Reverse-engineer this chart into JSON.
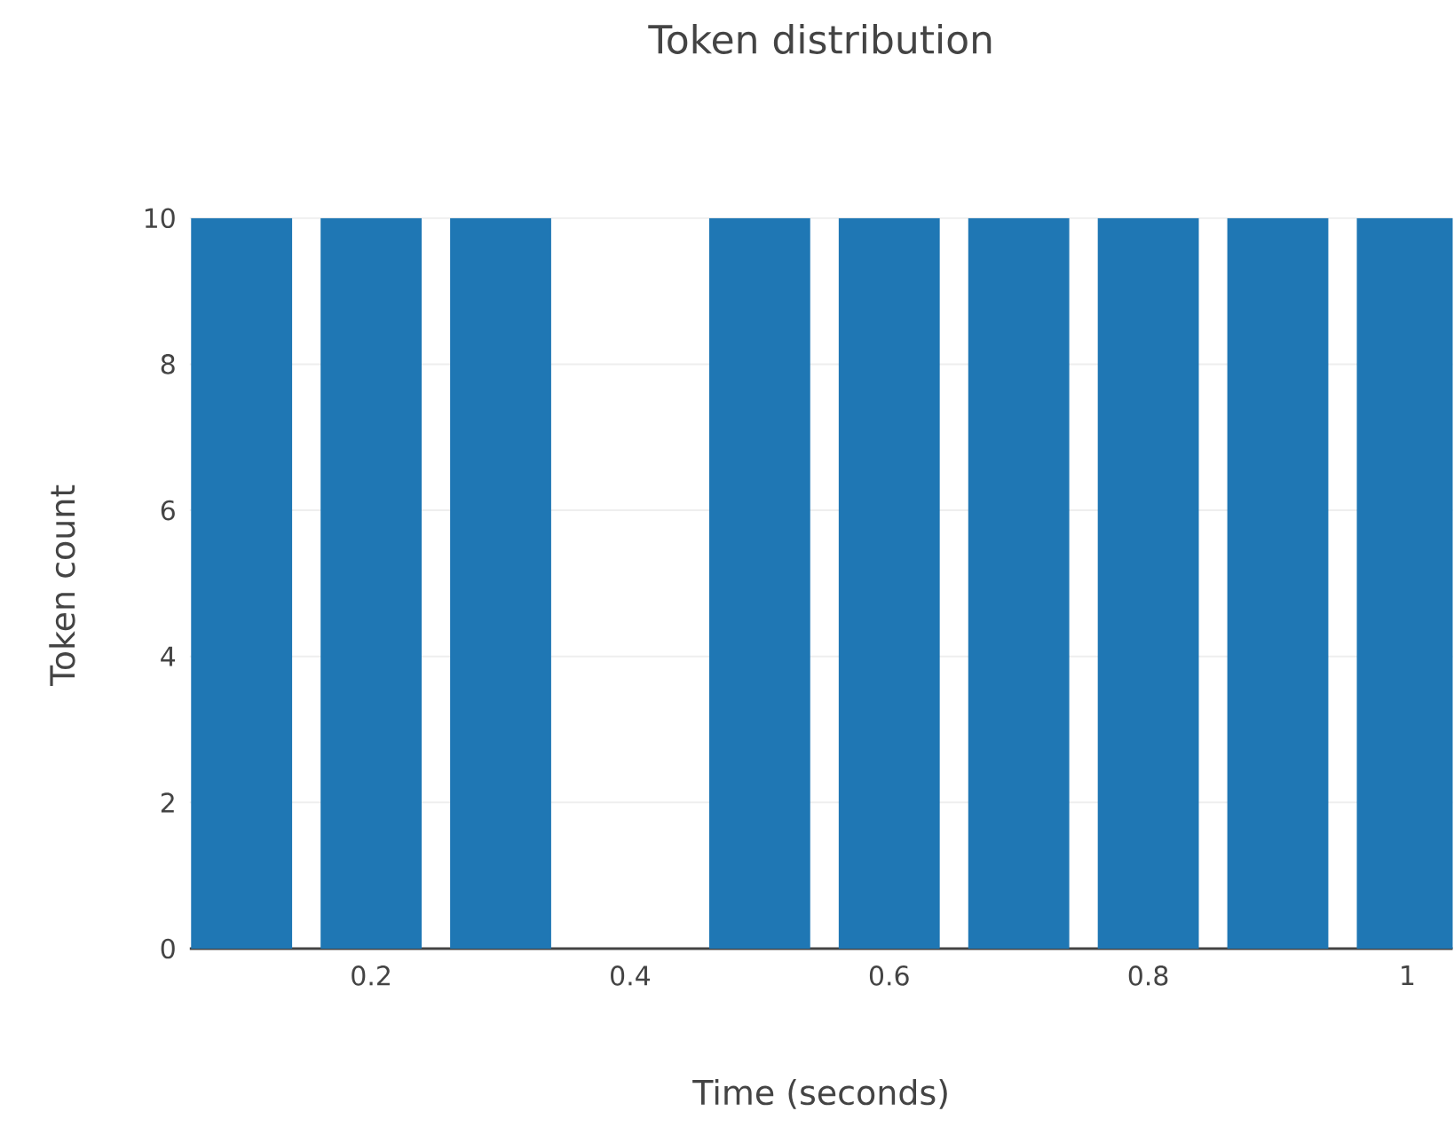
{
  "chart_data": {
    "type": "bar",
    "title": "Token distribution",
    "xlabel": "Time (seconds)",
    "ylabel": "Token count",
    "x": [
      0.1,
      0.2,
      0.3,
      0.4,
      0.5,
      0.6,
      0.7,
      0.8,
      0.9,
      1.0
    ],
    "values": [
      10,
      10,
      10,
      0,
      10,
      10,
      10,
      10,
      10,
      10
    ],
    "color": "#1f77b4",
    "xlim": [
      0.06,
      1.035
    ],
    "xticks": [
      0.2,
      0.4,
      0.6,
      0.8,
      1
    ],
    "ylim": [
      0,
      10
    ],
    "yticks": [
      0,
      2,
      4,
      6,
      8,
      10
    ],
    "grid": "y"
  }
}
